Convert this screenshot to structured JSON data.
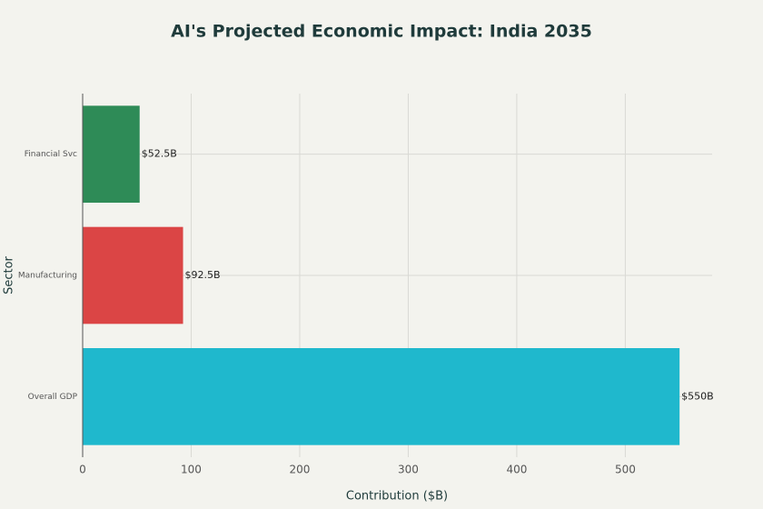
{
  "chart_data": {
    "type": "bar",
    "orientation": "horizontal",
    "title": "AI's Projected Economic Impact: India 2035",
    "x_label": "Contribution ($B)",
    "y_label": "Sector",
    "categories": [
      "Financial Svc",
      "Manufacturing",
      "Overall GDP"
    ],
    "values": [
      52.5,
      92.5,
      550
    ],
    "value_labels": [
      "$52.5B",
      "$92.5B",
      "$550B"
    ],
    "colors": [
      "#2e8b57",
      "#db4545",
      "#1fb8cd"
    ],
    "xlim": [
      0,
      580
    ],
    "xticks": [
      0,
      100,
      200,
      300,
      400,
      500
    ],
    "grid": true
  }
}
